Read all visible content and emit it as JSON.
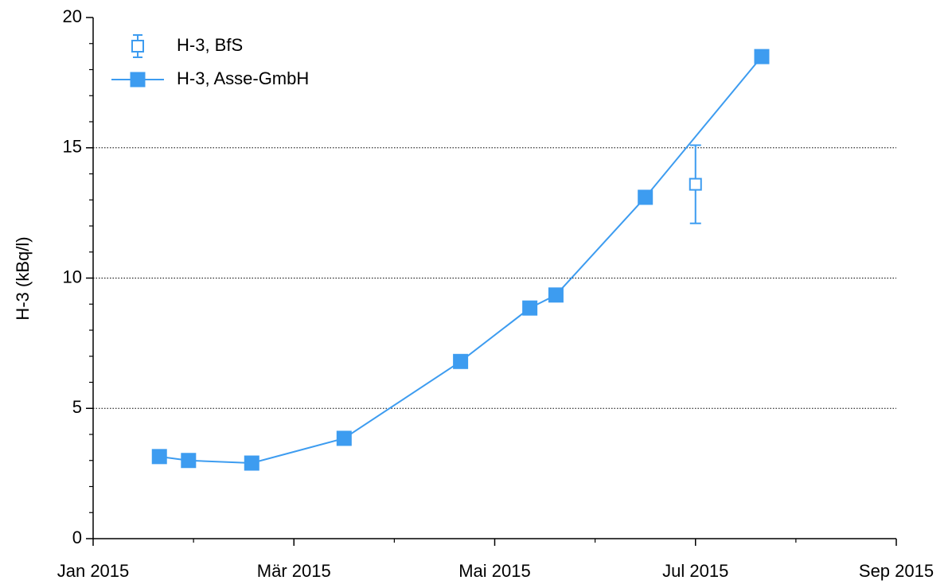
{
  "chart_data": {
    "type": "line",
    "ylabel": "H-3 (kBq/l)",
    "xlim": [
      0,
      8
    ],
    "xticks": [
      {
        "value": 0,
        "label": "Jan 2015"
      },
      {
        "value": 2,
        "label": "Mär 2015"
      },
      {
        "value": 4,
        "label": "Mai 2015"
      },
      {
        "value": 6,
        "label": "Jul 2015"
      },
      {
        "value": 8,
        "label": "Sep 2015"
      }
    ],
    "xminor_ticks": [
      1,
      3,
      5,
      7
    ],
    "ylim": [
      0,
      20
    ],
    "yticks": [
      0,
      5,
      10,
      15,
      20
    ],
    "yminor_ticks": [
      1,
      2,
      3,
      4,
      6,
      7,
      8,
      9,
      11,
      12,
      13,
      14,
      16,
      17,
      18,
      19
    ],
    "grid": true,
    "legend": "upper left",
    "series": [
      {
        "name": "H-3, BfS",
        "color": "#3d9cf0",
        "marker": "open-square",
        "line": false,
        "x": [
          6.0
        ],
        "values": [
          13.6
        ],
        "errors": [
          1.5
        ]
      },
      {
        "name": "H-3, Asse-GmbH",
        "color": "#3d9cf0",
        "marker": "filled-square",
        "line": true,
        "x": [
          0.66,
          0.95,
          1.58,
          2.5,
          3.66,
          4.35,
          4.61,
          5.5,
          6.66
        ],
        "values": [
          3.15,
          3.0,
          2.9,
          3.85,
          6.8,
          8.85,
          9.35,
          13.1,
          18.5
        ]
      }
    ]
  }
}
